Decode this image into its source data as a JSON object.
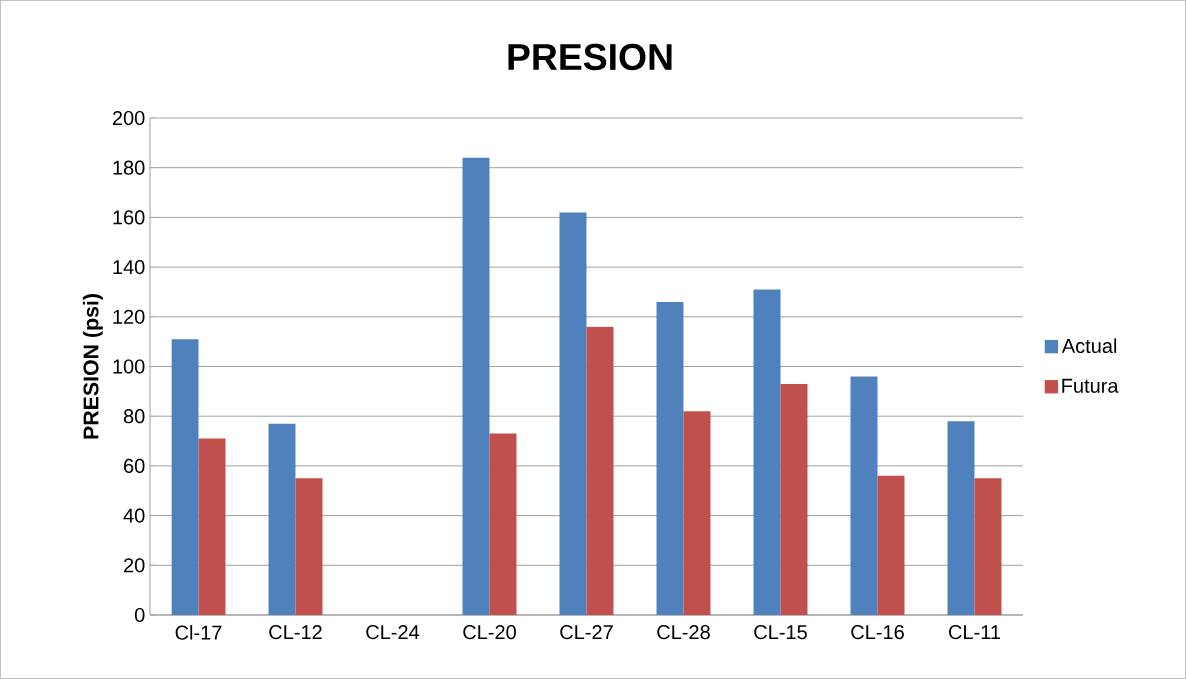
{
  "chart_data": {
    "type": "bar",
    "title": "PRESION",
    "ylabel": "PRESION (psi)",
    "categories": [
      "Cl-17",
      "CL-12",
      "CL-24",
      "CL-20",
      "CL-27",
      "CL-28",
      "CL-15",
      "CL-16",
      "CL-11"
    ],
    "series": [
      {
        "name": "Actual",
        "color": "#4f81bd",
        "values": [
          111,
          77,
          0,
          184,
          162,
          126,
          131,
          96,
          78
        ]
      },
      {
        "name": "Futura",
        "color": "#c0504d",
        "values": [
          71,
          55,
          0,
          73,
          116,
          82,
          93,
          56,
          55
        ]
      }
    ],
    "ylim": [
      0,
      200
    ],
    "yticks": [
      0,
      20,
      40,
      60,
      80,
      100,
      120,
      140,
      160,
      180,
      200
    ],
    "grid": "y",
    "legend": "right"
  }
}
